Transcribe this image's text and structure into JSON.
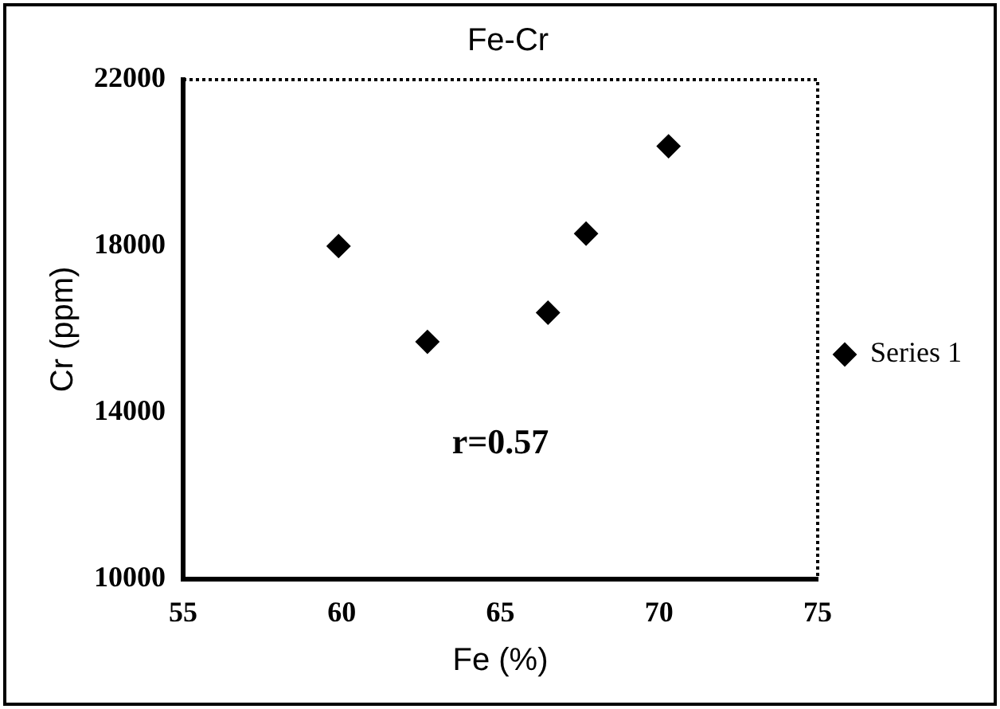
{
  "chart_data": {
    "type": "scatter",
    "title": "Fe-Cr",
    "xlabel": "Fe (%)",
    "ylabel": "Cr (ppm)",
    "x": [
      59.9,
      62.7,
      66.5,
      67.7,
      70.3
    ],
    "series": [
      {
        "name": "Series 1",
        "color": "#000000",
        "values": [
          18000,
          15700,
          16400,
          18300,
          20400
        ]
      }
    ],
    "xlim": [
      55,
      75
    ],
    "xticks": [
      55,
      60,
      65,
      70,
      75
    ],
    "ylim": [
      10000,
      22000
    ],
    "yticks": [
      10000,
      14000,
      18000,
      22000
    ],
    "marker": "diamond",
    "legend": "right",
    "grid": false,
    "annotations": [
      "r=0.57"
    ]
  }
}
